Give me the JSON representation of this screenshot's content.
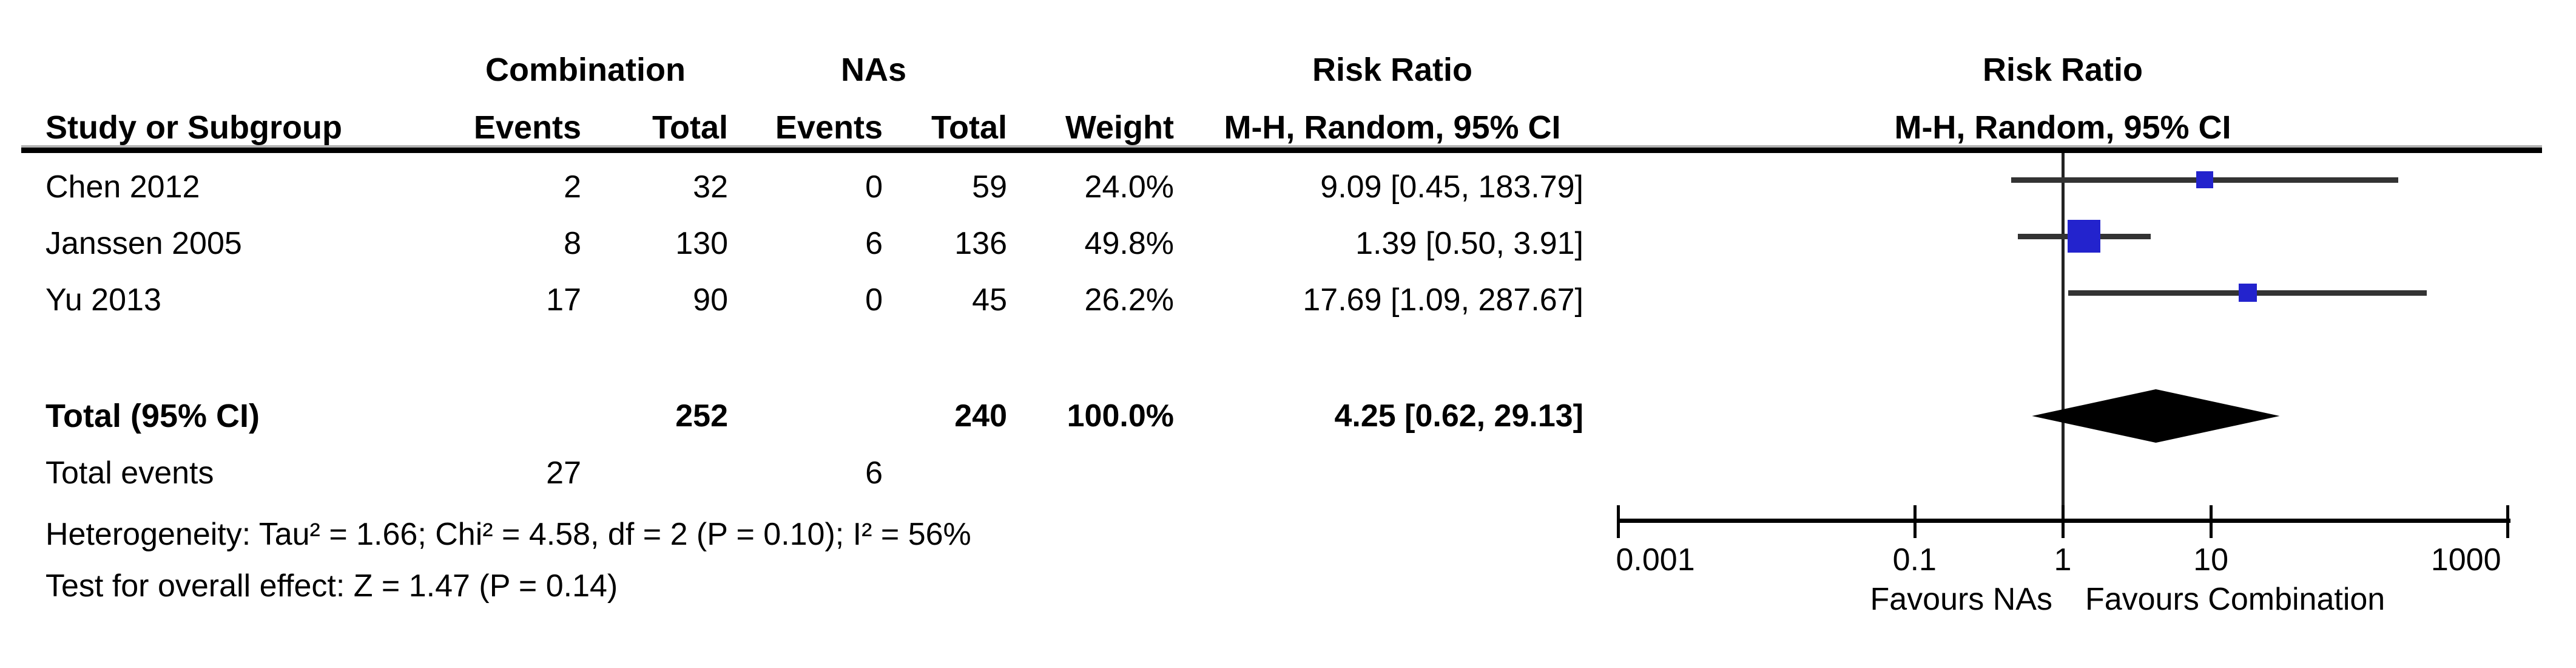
{
  "figure_title": "Forest plot — Risk Ratio, M-H Random effects, Combination vs NAs",
  "headers": {
    "group_combination": "Combination",
    "group_nas": "NAs",
    "rr_text_title": "Risk Ratio",
    "rr_plot_title": "Risk Ratio",
    "study": "Study or Subgroup",
    "events": "Events",
    "total": "Total",
    "events2": "Events",
    "total2": "Total",
    "weight": "Weight",
    "mh_ci_text": "M-H, Random, 95% CI",
    "mh_ci_plot": "M-H, Random, 95% CI"
  },
  "chart_data": {
    "type": "forest",
    "effect_measure": "Risk Ratio",
    "model": "M-H, Random, 95% CI",
    "scale": "log",
    "axis": {
      "min": 0.001,
      "max": 1000,
      "ticks": [
        0.001,
        0.1,
        1,
        10,
        1000
      ],
      "tick_labels": [
        "0.001",
        "0.1",
        "1",
        "10",
        "1000"
      ]
    },
    "studies": [
      {
        "name": "Chen 2012",
        "events1": "2",
        "total1": "32",
        "events2": "0",
        "total2": "59",
        "weight": "24.0%",
        "weight_pct": 24.0,
        "rr_text": "9.09 [0.45, 183.79]",
        "est": 9.09,
        "lo": 0.45,
        "hi": 183.79
      },
      {
        "name": "Janssen 2005",
        "events1": "8",
        "total1": "130",
        "events2": "6",
        "total2": "136",
        "weight": "49.8%",
        "weight_pct": 49.8,
        "rr_text": "1.39 [0.50, 3.91]",
        "est": 1.39,
        "lo": 0.5,
        "hi": 3.91
      },
      {
        "name": "Yu 2013",
        "events1": "17",
        "total1": "90",
        "events2": "0",
        "total2": "45",
        "weight": "26.2%",
        "weight_pct": 26.2,
        "rr_text": "17.69 [1.09, 287.67]",
        "est": 17.69,
        "lo": 1.09,
        "hi": 287.67
      }
    ],
    "total": {
      "label": "Total (95% CI)",
      "total1": "252",
      "total2": "240",
      "weight": "100.0%",
      "rr_text": "4.25 [0.62, 29.13]",
      "est": 4.25,
      "lo": 0.62,
      "hi": 29.13
    },
    "total_events": {
      "label": "Total events",
      "events1": "27",
      "events2": "6"
    },
    "heterogeneity": "Heterogeneity: Tau² = 1.66; Chi² = 4.58, df = 2 (P = 0.10); I² = 56%",
    "overall_effect": "Test for overall effect: Z = 1.47 (P = 0.14)",
    "favours_left": "Favours NAs",
    "favours_right": "Favours Combination",
    "colors": {
      "square": "#2323cd",
      "diamond": "#000000",
      "ci_line": "#333333",
      "axis": "#000000"
    }
  }
}
